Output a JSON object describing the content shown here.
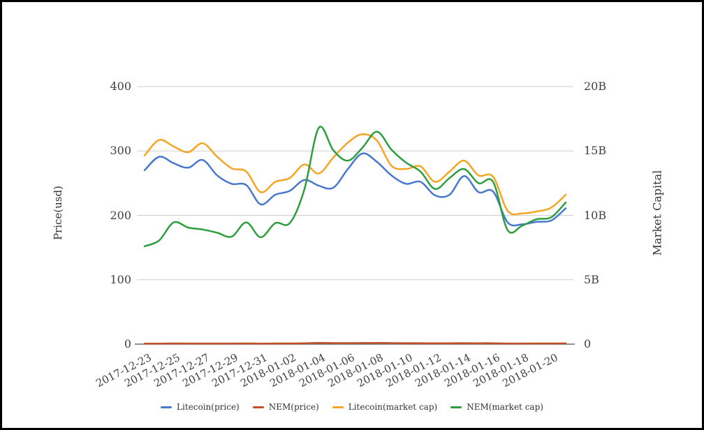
{
  "chart_data": {
    "type": "line",
    "title": "",
    "x": [
      "2017-12-23",
      "2017-12-24",
      "2017-12-25",
      "2017-12-26",
      "2017-12-27",
      "2017-12-28",
      "2017-12-29",
      "2017-12-30",
      "2017-12-31",
      "2018-01-01",
      "2018-01-02",
      "2018-01-03",
      "2018-01-04",
      "2018-01-05",
      "2018-01-06",
      "2018-01-07",
      "2018-01-08",
      "2018-01-09",
      "2018-01-10",
      "2018-01-11",
      "2018-01-12",
      "2018-01-13",
      "2018-01-14",
      "2018-01-15",
      "2018-01-16",
      "2018-01-17",
      "2018-01-18",
      "2018-01-19",
      "2018-01-20",
      "2018-01-21"
    ],
    "x_tick_labels": [
      "2017-12-23",
      "2017-12-25",
      "2017-12-27",
      "2017-12-29",
      "2017-12-31",
      "2018-01-02",
      "2018-01-04",
      "2018-01-06",
      "2018-01-08",
      "2018-01-10",
      "2018-01-12",
      "2018-01-14",
      "2018-01-16",
      "2018-01-18",
      "2018-01-20"
    ],
    "series": [
      {
        "name": "Litecoin(price)",
        "axis": "left",
        "color": "#4878cd",
        "values": [
          270,
          291,
          281,
          274,
          286,
          262,
          249,
          247,
          217,
          232,
          238,
          255,
          246,
          243,
          272,
          296,
          283,
          262,
          249,
          252,
          231,
          232,
          261,
          236,
          237,
          189,
          186,
          190,
          192,
          211
        ]
      },
      {
        "name": "NEM(price)",
        "axis": "left",
        "color": "#c14f28",
        "values": [
          0.84,
          0.89,
          1.05,
          1.01,
          0.99,
          0.96,
          0.93,
          1.05,
          0.92,
          1.04,
          1.04,
          1.33,
          1.87,
          1.67,
          1.58,
          1.69,
          1.83,
          1.68,
          1.57,
          1.49,
          1.34,
          1.43,
          1.51,
          1.39,
          1.4,
          0.98,
          1.02,
          1.08,
          1.09,
          1.22
        ]
      },
      {
        "name": "Litecoin(market cap)",
        "axis": "right",
        "color": "#f5a524",
        "values": [
          14.65,
          15.85,
          15.35,
          14.9,
          15.6,
          14.55,
          13.65,
          13.4,
          11.8,
          12.6,
          12.9,
          13.95,
          13.25,
          14.5,
          15.65,
          16.3,
          15.8,
          13.85,
          13.6,
          13.8,
          12.6,
          13.4,
          14.25,
          13.1,
          13.0,
          10.35,
          10.15,
          10.3,
          10.6,
          11.6
        ]
      },
      {
        "name": "NEM(market cap)",
        "axis": "right",
        "color": "#2d9e3d",
        "values": [
          7.6,
          8.05,
          9.45,
          9.05,
          8.9,
          8.65,
          8.35,
          9.45,
          8.3,
          9.4,
          9.4,
          12.0,
          16.8,
          15.05,
          14.25,
          15.25,
          16.5,
          15.1,
          14.1,
          13.4,
          12.05,
          12.9,
          13.6,
          12.5,
          12.6,
          8.85,
          9.2,
          9.7,
          9.85,
          11.0
        ]
      }
    ],
    "left_axis": {
      "label": "Price(usd)",
      "tick_labels": [
        "0",
        "100",
        "200",
        "300",
        "400"
      ],
      "tick_values": [
        0,
        100,
        200,
        300,
        400
      ],
      "range": [
        0,
        400
      ]
    },
    "right_axis": {
      "label": "Market Capital",
      "tick_labels": [
        "0",
        "5B",
        "10B",
        "15B",
        "20B"
      ],
      "tick_values": [
        0,
        5,
        10,
        15,
        20
      ],
      "range": [
        0,
        20
      ]
    },
    "grid": "horizontal",
    "legend_position": "bottom",
    "colors": {
      "grid_line": "#cfcfcf",
      "zero_line": "#6e6e6e",
      "tick_text": "#404040",
      "frame_border": "#000000"
    }
  }
}
